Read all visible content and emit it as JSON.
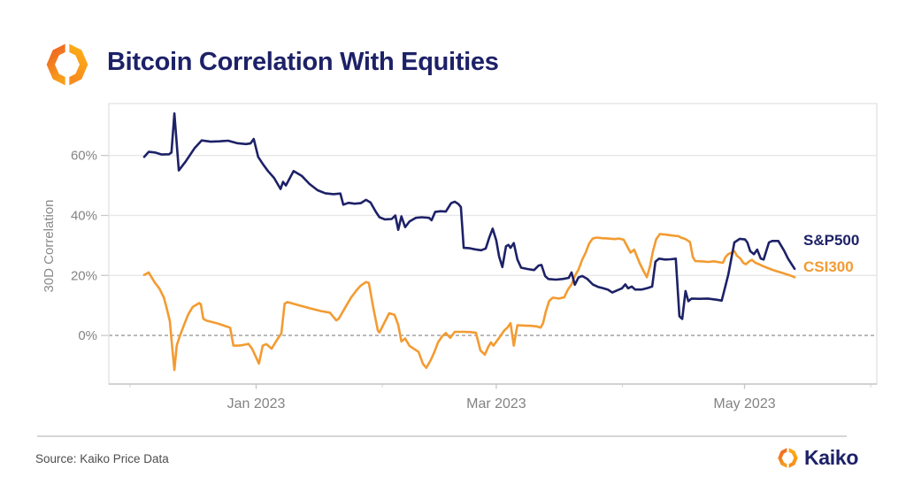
{
  "header": {
    "title": "Bitcoin Correlation With Equities"
  },
  "footer": {
    "source": "Source: Kaiko Price Data",
    "brand": "Kaiko"
  },
  "brand": {
    "navy": "#1d2167",
    "orange": "#f39b31",
    "logo_gradient": [
      "#ee5a24",
      "#f79e1b",
      "#fdb515"
    ]
  },
  "chart_data": {
    "type": "line",
    "title": "Bitcoin Correlation With Equities",
    "ylabel": "30D Correlation",
    "xlabel": "",
    "grid": true,
    "legend_position": "right-end-of-lines",
    "x_epoch": "2022-12-01",
    "x_domain_days": [
      -5.2,
      183.5
    ],
    "ylim": [
      -16.2,
      77.3
    ],
    "y_ticks": [
      {
        "value": 60,
        "label": "60%"
      },
      {
        "value": 40,
        "label": "40%"
      },
      {
        "value": 20,
        "label": "20%"
      },
      {
        "value": 0,
        "label": "0%"
      }
    ],
    "x_ticks": [
      {
        "day": 31,
        "label": "Jan 2023"
      },
      {
        "day": 90,
        "label": "Mar 2023"
      },
      {
        "day": 151,
        "label": "May 2023"
      }
    ],
    "x_minor_ticks_days": [
      0,
      62,
      121,
      182
    ],
    "zero_line": {
      "value": 0,
      "style": "dashed",
      "color": "#9b9b9b"
    },
    "grid_color": "#e7e7e7",
    "series": [
      {
        "name": "S&P500",
        "color": "#1d2167",
        "points": [
          [
            3.5,
            59.5
          ],
          [
            4.6,
            61.2
          ],
          [
            6.1,
            61
          ],
          [
            7.8,
            60.3
          ],
          [
            9.6,
            60.4
          ],
          [
            10.2,
            61
          ],
          [
            10.9,
            74
          ],
          [
            12,
            55
          ],
          [
            13.7,
            58
          ],
          [
            15.9,
            62.5
          ],
          [
            17.6,
            65
          ],
          [
            19.8,
            64.6
          ],
          [
            22,
            64.7
          ],
          [
            24.1,
            64.9
          ],
          [
            26.3,
            64.1
          ],
          [
            28.5,
            63.8
          ],
          [
            29.6,
            64
          ],
          [
            30.4,
            65.5
          ],
          [
            31.5,
            59.5
          ],
          [
            32.6,
            57.2
          ],
          [
            33.9,
            54.8
          ],
          [
            35.4,
            52.5
          ],
          [
            37,
            48.8
          ],
          [
            37.6,
            51.2
          ],
          [
            38.3,
            50
          ],
          [
            40.2,
            54.8
          ],
          [
            42.2,
            53.2
          ],
          [
            44.1,
            50.5
          ],
          [
            46.1,
            48.4
          ],
          [
            48,
            47.4
          ],
          [
            50,
            47.1
          ],
          [
            51.7,
            47.3
          ],
          [
            52.4,
            43.6
          ],
          [
            53.7,
            44.2
          ],
          [
            55.2,
            43.9
          ],
          [
            56.7,
            44.1
          ],
          [
            58,
            45.2
          ],
          [
            59.1,
            44.3
          ],
          [
            60.4,
            41.2
          ],
          [
            61.3,
            39.4
          ],
          [
            62.6,
            38.7
          ],
          [
            64.3,
            38.8
          ],
          [
            65.2,
            40
          ],
          [
            65.9,
            35.2
          ],
          [
            66.7,
            39.7
          ],
          [
            67.6,
            36.1
          ],
          [
            68.7,
            38
          ],
          [
            70.2,
            39.2
          ],
          [
            71.7,
            39.4
          ],
          [
            73.5,
            39.2
          ],
          [
            74.1,
            38.4
          ],
          [
            75,
            41.2
          ],
          [
            76.3,
            41.4
          ],
          [
            77.6,
            41.3
          ],
          [
            78.9,
            44.1
          ],
          [
            79.8,
            44.6
          ],
          [
            80.7,
            43.8
          ],
          [
            81.3,
            42.8
          ],
          [
            82,
            29.2
          ],
          [
            83.3,
            29.1
          ],
          [
            84.8,
            28.7
          ],
          [
            86.3,
            28.4
          ],
          [
            87.4,
            29
          ],
          [
            88.3,
            32.7
          ],
          [
            89.1,
            35.6
          ],
          [
            90,
            31.7
          ],
          [
            90.7,
            26.3
          ],
          [
            91.5,
            22.8
          ],
          [
            92.4,
            29.7
          ],
          [
            93,
            30.2
          ],
          [
            93.5,
            29.2
          ],
          [
            94.3,
            30.8
          ],
          [
            95.2,
            25.3
          ],
          [
            96.1,
            22.6
          ],
          [
            97.8,
            22.1
          ],
          [
            99.3,
            21.8
          ],
          [
            100.4,
            23.3
          ],
          [
            101.1,
            23.5
          ],
          [
            102,
            19.8
          ],
          [
            102.8,
            18.8
          ],
          [
            104.6,
            18.6
          ],
          [
            106.3,
            18.8
          ],
          [
            107.8,
            19.2
          ],
          [
            108.5,
            21
          ],
          [
            109.3,
            16.9
          ],
          [
            110.2,
            19.3
          ],
          [
            111.1,
            19.8
          ],
          [
            112.4,
            18.8
          ],
          [
            113.7,
            17
          ],
          [
            115,
            16.2
          ],
          [
            116.1,
            15.8
          ],
          [
            117.4,
            15.3
          ],
          [
            118.5,
            14.3
          ],
          [
            119.8,
            15.1
          ],
          [
            120.9,
            15.7
          ],
          [
            121.7,
            17
          ],
          [
            122.4,
            15.7
          ],
          [
            123.3,
            16.3
          ],
          [
            124.1,
            15.3
          ],
          [
            125.7,
            15.3
          ],
          [
            127.2,
            15.8
          ],
          [
            128.3,
            16.3
          ],
          [
            129.1,
            24.6
          ],
          [
            130,
            25.6
          ],
          [
            131.5,
            25.3
          ],
          [
            132.8,
            25.4
          ],
          [
            134.1,
            25.6
          ],
          [
            135,
            6.4
          ],
          [
            135.7,
            5.5
          ],
          [
            136.5,
            14.8
          ],
          [
            137.2,
            11.4
          ],
          [
            138,
            12.3
          ],
          [
            139.8,
            12.2
          ],
          [
            142,
            12.3
          ],
          [
            144.1,
            11.9
          ],
          [
            145.4,
            11.6
          ],
          [
            147,
            20.2
          ],
          [
            148.5,
            31
          ],
          [
            149.8,
            32.2
          ],
          [
            151.1,
            32
          ],
          [
            151.7,
            31
          ],
          [
            152.4,
            28.1
          ],
          [
            153.3,
            27.1
          ],
          [
            154.1,
            28.6
          ],
          [
            155,
            25.6
          ],
          [
            155.7,
            25.3
          ],
          [
            157,
            31
          ],
          [
            157.8,
            31.5
          ],
          [
            159.3,
            31.5
          ],
          [
            160.7,
            28.3
          ],
          [
            161.7,
            25.6
          ],
          [
            163.3,
            22.2
          ]
        ]
      },
      {
        "name": "CSI300",
        "color": "#f39b31",
        "points": [
          [
            3.5,
            20.2
          ],
          [
            4.6,
            21
          ],
          [
            6.1,
            17.6
          ],
          [
            7.2,
            15.7
          ],
          [
            8.3,
            12.7
          ],
          [
            8.9,
            9.7
          ],
          [
            9.8,
            4.7
          ],
          [
            10.2,
            -1.3
          ],
          [
            10.9,
            -11.5
          ],
          [
            11.5,
            -3.3
          ],
          [
            12.2,
            -0.4
          ],
          [
            13.3,
            3.6
          ],
          [
            14.3,
            7
          ],
          [
            15.4,
            9.5
          ],
          [
            17,
            10.8
          ],
          [
            17.4,
            10.4
          ],
          [
            18,
            5.6
          ],
          [
            18.7,
            5
          ],
          [
            19.8,
            4.6
          ],
          [
            21.3,
            4.1
          ],
          [
            22.4,
            3.6
          ],
          [
            23.5,
            3.1
          ],
          [
            24.6,
            2.6
          ],
          [
            25.4,
            -3.4
          ],
          [
            26.7,
            -3.4
          ],
          [
            27.8,
            -3.2
          ],
          [
            29.1,
            -2.8
          ],
          [
            30,
            -4.4
          ],
          [
            31.7,
            -9.4
          ],
          [
            32.6,
            -3.4
          ],
          [
            33.5,
            -2.9
          ],
          [
            34.8,
            -4.4
          ],
          [
            36.1,
            -1.5
          ],
          [
            37.2,
            0.7
          ],
          [
            38,
            10.6
          ],
          [
            38.7,
            11.1
          ],
          [
            41.3,
            10.1
          ],
          [
            44.1,
            9.1
          ],
          [
            47,
            8.1
          ],
          [
            49.1,
            7.6
          ],
          [
            50.7,
            5
          ],
          [
            51.3,
            5.6
          ],
          [
            52.8,
            9.1
          ],
          [
            54.3,
            12.6
          ],
          [
            55.7,
            15.1
          ],
          [
            56.7,
            16.6
          ],
          [
            58,
            17.8
          ],
          [
            58.7,
            17.5
          ],
          [
            59.8,
            9.1
          ],
          [
            60.9,
            1.6
          ],
          [
            61.3,
            1
          ],
          [
            62.4,
            4
          ],
          [
            63.7,
            7.4
          ],
          [
            65,
            6.9
          ],
          [
            65.9,
            3.5
          ],
          [
            66.7,
            -2
          ],
          [
            67.6,
            -1
          ],
          [
            68.7,
            -3.5
          ],
          [
            69.8,
            -4.5
          ],
          [
            70.9,
            -5.5
          ],
          [
            72,
            -9.5
          ],
          [
            72.8,
            -10.8
          ],
          [
            73.9,
            -8.2
          ],
          [
            74.8,
            -5.5
          ],
          [
            75.7,
            -2.3
          ],
          [
            76.7,
            -0.3
          ],
          [
            77.6,
            0.8
          ],
          [
            78.7,
            -0.8
          ],
          [
            79.8,
            1.2
          ],
          [
            82,
            1.2
          ],
          [
            83.7,
            1.1
          ],
          [
            85,
            0.9
          ],
          [
            86.1,
            -5
          ],
          [
            87.2,
            -6.4
          ],
          [
            88,
            -3.9
          ],
          [
            88.7,
            -2.3
          ],
          [
            89.3,
            -3.4
          ],
          [
            90.7,
            -0.8
          ],
          [
            92,
            1.7
          ],
          [
            92.8,
            2.7
          ],
          [
            93.5,
            4.1
          ],
          [
            94.3,
            -3.4
          ],
          [
            95.2,
            3.4
          ],
          [
            96.7,
            3.3
          ],
          [
            98.5,
            3.2
          ],
          [
            100,
            3
          ],
          [
            100.9,
            2.6
          ],
          [
            101.5,
            4.1
          ],
          [
            102.2,
            8.1
          ],
          [
            103,
            11.5
          ],
          [
            103.9,
            12.6
          ],
          [
            105.4,
            12.3
          ],
          [
            106.7,
            12.7
          ],
          [
            107.6,
            15.3
          ],
          [
            108.5,
            17
          ],
          [
            109.3,
            19.8
          ],
          [
            110.2,
            21.9
          ],
          [
            111.1,
            25.2
          ],
          [
            112,
            27.7
          ],
          [
            112.8,
            30.6
          ],
          [
            113.7,
            32.3
          ],
          [
            114.6,
            32.6
          ],
          [
            116.1,
            32.4
          ],
          [
            117.6,
            32.3
          ],
          [
            119.1,
            32.1
          ],
          [
            120.2,
            32.3
          ],
          [
            121.3,
            31.9
          ],
          [
            122.4,
            29.1
          ],
          [
            123,
            27.6
          ],
          [
            123.9,
            28.6
          ],
          [
            125.2,
            24.2
          ],
          [
            126.1,
            21.7
          ],
          [
            127,
            19.4
          ],
          [
            127.8,
            23.2
          ],
          [
            128.5,
            28.1
          ],
          [
            129.3,
            32.1
          ],
          [
            130.2,
            33.8
          ],
          [
            131.7,
            33.6
          ],
          [
            133.3,
            33.3
          ],
          [
            134.8,
            33.1
          ],
          [
            135.4,
            32.6
          ],
          [
            136.5,
            32.1
          ],
          [
            137.6,
            31.1
          ],
          [
            138.3,
            26.1
          ],
          [
            138.9,
            24.8
          ],
          [
            140.4,
            24.7
          ],
          [
            142,
            24.5
          ],
          [
            143.5,
            24.7
          ],
          [
            144.8,
            24.4
          ],
          [
            145.7,
            24.2
          ],
          [
            146.3,
            26.1
          ],
          [
            147,
            27.1
          ],
          [
            147.8,
            27.6
          ],
          [
            148.5,
            28.1
          ],
          [
            149.1,
            26.6
          ],
          [
            150,
            25.6
          ],
          [
            150.7,
            24.2
          ],
          [
            151.3,
            23.7
          ],
          [
            152.2,
            24.7
          ],
          [
            152.8,
            25.2
          ],
          [
            153.7,
            24.2
          ],
          [
            154.6,
            23.7
          ],
          [
            155.4,
            23.2
          ],
          [
            156.5,
            22.6
          ],
          [
            157.6,
            22
          ],
          [
            158.9,
            21.4
          ],
          [
            160.2,
            20.9
          ],
          [
            161.5,
            20.3
          ],
          [
            162.4,
            19.9
          ],
          [
            163.3,
            19.4
          ]
        ]
      }
    ]
  }
}
